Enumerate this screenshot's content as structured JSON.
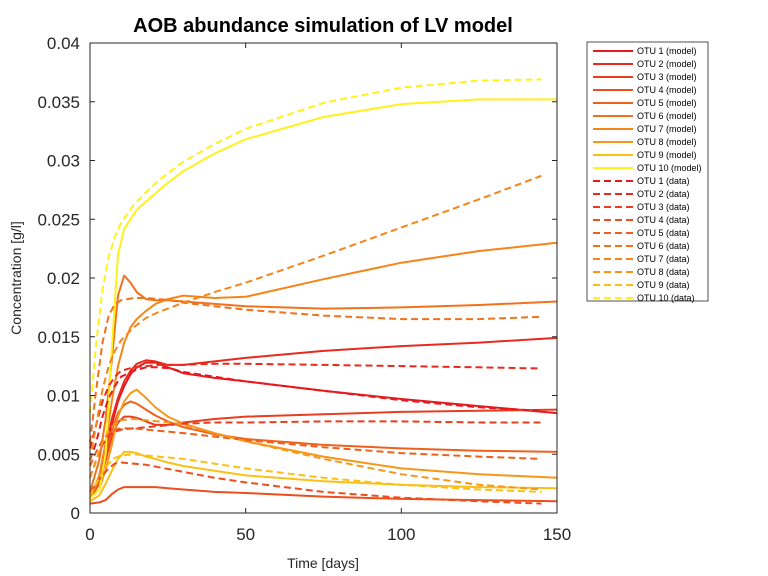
{
  "chart_data": {
    "type": "line",
    "title": "AOB abundance simulation of LV model",
    "xlabel": "Time [days]",
    "ylabel": "Concentration [g/l]",
    "xlim": [
      0,
      150
    ],
    "ylim": [
      0,
      0.04
    ],
    "xticks": [
      0,
      50,
      100,
      150
    ],
    "xtick_labels": [
      "0",
      "50",
      "100",
      "150"
    ],
    "yticks": [
      0,
      0.005,
      0.01,
      0.015,
      0.02,
      0.025,
      0.03,
      0.035,
      0.04
    ],
    "ytick_labels": [
      "0",
      "0.005",
      "0.01",
      "0.015",
      "0.02",
      "0.025",
      "0.03",
      "0.035",
      "0.04"
    ],
    "grid": false,
    "legend_position": "outside-top-right",
    "series": [
      {
        "name": "OTU 1 (model)",
        "color": "#e6191f",
        "dash": "solid",
        "x": [
          0,
          3,
          5,
          7,
          9,
          11,
          13,
          15,
          18,
          21,
          25,
          30,
          40,
          50,
          75,
          100,
          125,
          150
        ],
        "y": [
          0.0012,
          0.0025,
          0.005,
          0.0075,
          0.0095,
          0.0108,
          0.0118,
          0.0124,
          0.0128,
          0.0128,
          0.0124,
          0.0119,
          0.0115,
          0.0112,
          0.0104,
          0.0097,
          0.0091,
          0.0085
        ]
      },
      {
        "name": "OTU 2 (model)",
        "color": "#e82a1e",
        "dash": "solid",
        "x": [
          0,
          3,
          5,
          7,
          9,
          11,
          13,
          15,
          18,
          21,
          25,
          30,
          40,
          50,
          75,
          100,
          125,
          150
        ],
        "y": [
          0.0012,
          0.0028,
          0.0055,
          0.008,
          0.0098,
          0.0112,
          0.0121,
          0.0127,
          0.013,
          0.0129,
          0.0126,
          0.0126,
          0.0129,
          0.0132,
          0.0138,
          0.0142,
          0.0145,
          0.0149
        ]
      },
      {
        "name": "OTU 3 (model)",
        "color": "#ea3c1e",
        "dash": "solid",
        "x": [
          0,
          3,
          5,
          7,
          9,
          11,
          13,
          15,
          18,
          21,
          25,
          30,
          40,
          50,
          75,
          100,
          125,
          150
        ],
        "y": [
          0.0012,
          0.0025,
          0.0045,
          0.0065,
          0.0077,
          0.0082,
          0.0082,
          0.0081,
          0.0078,
          0.0075,
          0.0075,
          0.0077,
          0.008,
          0.0082,
          0.0084,
          0.0086,
          0.0087,
          0.0088
        ]
      },
      {
        "name": "OTU 4 (model)",
        "color": "#ed4e1d",
        "dash": "solid",
        "x": [
          0,
          3,
          5,
          7,
          9,
          11,
          13,
          15,
          18,
          21,
          25,
          30,
          40,
          50,
          75,
          100,
          125,
          150
        ],
        "y": [
          0.0008,
          0.0009,
          0.0011,
          0.0016,
          0.002,
          0.0022,
          0.0022,
          0.0022,
          0.0022,
          0.0022,
          0.0021,
          0.002,
          0.0018,
          0.0017,
          0.0014,
          0.0012,
          0.0011,
          0.001
        ]
      },
      {
        "name": "OTU 5 (model)",
        "color": "#ef601c",
        "dash": "solid",
        "x": [
          0,
          3,
          5,
          7,
          9,
          11,
          13,
          15,
          18,
          21,
          25,
          30,
          40,
          50,
          75,
          100,
          125,
          150
        ],
        "y": [
          0.0012,
          0.0026,
          0.005,
          0.007,
          0.0085,
          0.0092,
          0.0095,
          0.0093,
          0.0088,
          0.0083,
          0.0078,
          0.0073,
          0.0067,
          0.0063,
          0.0058,
          0.0055,
          0.0053,
          0.0052
        ]
      },
      {
        "name": "OTU 6 (model)",
        "color": "#f2721b",
        "dash": "solid",
        "x": [
          0,
          3,
          5,
          7,
          9,
          11,
          13,
          15,
          18,
          21,
          25,
          30,
          40,
          50,
          75,
          100,
          125,
          150
        ],
        "y": [
          0.0018,
          0.0045,
          0.008,
          0.013,
          0.0185,
          0.0202,
          0.0196,
          0.0188,
          0.0182,
          0.0181,
          0.0181,
          0.018,
          0.0178,
          0.0176,
          0.0174,
          0.0175,
          0.0177,
          0.018
        ]
      },
      {
        "name": "OTU 7 (model)",
        "color": "#f5851a",
        "dash": "solid",
        "x": [
          0,
          3,
          5,
          7,
          9,
          11,
          13,
          15,
          18,
          21,
          25,
          30,
          40,
          50,
          75,
          100,
          125,
          150
        ],
        "y": [
          0.0012,
          0.0032,
          0.006,
          0.0095,
          0.0125,
          0.0145,
          0.0158,
          0.0165,
          0.0172,
          0.0178,
          0.0182,
          0.0185,
          0.0183,
          0.0184,
          0.0199,
          0.0213,
          0.0223,
          0.023
        ]
      },
      {
        "name": "OTU 8 (model)",
        "color": "#f7971a",
        "dash": "solid",
        "x": [
          0,
          3,
          5,
          7,
          9,
          11,
          13,
          15,
          18,
          21,
          25,
          30,
          40,
          50,
          75,
          100,
          125,
          150
        ],
        "y": [
          0.0012,
          0.002,
          0.0037,
          0.0058,
          0.0082,
          0.0095,
          0.0102,
          0.0105,
          0.0098,
          0.009,
          0.0082,
          0.0076,
          0.0068,
          0.0061,
          0.0048,
          0.0038,
          0.0033,
          0.003
        ]
      },
      {
        "name": "OTU 9 (model)",
        "color": "#fac019",
        "dash": "solid",
        "x": [
          0,
          3,
          5,
          7,
          9,
          11,
          13,
          15,
          18,
          21,
          25,
          30,
          40,
          50,
          75,
          100,
          125,
          150
        ],
        "y": [
          0.001,
          0.0015,
          0.0025,
          0.0036,
          0.0046,
          0.0052,
          0.0052,
          0.0051,
          0.0048,
          0.0046,
          0.0043,
          0.004,
          0.0036,
          0.0032,
          0.0027,
          0.0024,
          0.0022,
          0.0021
        ]
      },
      {
        "name": "OTU 10 (model)",
        "color": "#fff21c",
        "dash": "solid",
        "x": [
          0,
          3,
          5,
          7,
          9,
          11,
          13,
          15,
          18,
          21,
          25,
          30,
          40,
          50,
          75,
          100,
          125,
          150
        ],
        "y": [
          0.0012,
          0.002,
          0.005,
          0.014,
          0.022,
          0.0242,
          0.025,
          0.0258,
          0.0265,
          0.0272,
          0.0281,
          0.0291,
          0.0306,
          0.0318,
          0.0337,
          0.0348,
          0.0352,
          0.0352
        ]
      },
      {
        "name": "OTU 1 (data)",
        "color": "#e6191f",
        "dash": "dashed",
        "x": [
          0,
          2,
          4,
          6,
          8,
          10,
          14,
          18,
          22,
          26,
          30,
          40,
          50,
          75,
          100,
          125,
          145
        ],
        "y": [
          0.0045,
          0.006,
          0.0082,
          0.0098,
          0.0108,
          0.0116,
          0.0121,
          0.0124,
          0.0124,
          0.0123,
          0.012,
          0.0116,
          0.0112,
          0.0104,
          0.0096,
          0.009,
          0.0087
        ]
      },
      {
        "name": "OTU 2 (data)",
        "color": "#e82a1e",
        "dash": "dashed",
        "x": [
          0,
          2,
          4,
          6,
          8,
          10,
          14,
          18,
          22,
          26,
          30,
          40,
          50,
          75,
          100,
          125,
          145
        ],
        "y": [
          0.0055,
          0.0075,
          0.0095,
          0.0108,
          0.0116,
          0.0121,
          0.0124,
          0.0125,
          0.0126,
          0.0126,
          0.0126,
          0.0127,
          0.0127,
          0.0126,
          0.0125,
          0.0124,
          0.0123
        ]
      },
      {
        "name": "OTU 3 (data)",
        "color": "#ea3c1e",
        "dash": "dashed",
        "x": [
          0,
          2,
          4,
          6,
          8,
          10,
          14,
          18,
          22,
          26,
          30,
          40,
          50,
          75,
          100,
          125,
          145
        ],
        "y": [
          0.003,
          0.0045,
          0.0058,
          0.0066,
          0.0069,
          0.0071,
          0.0072,
          0.0073,
          0.0074,
          0.0075,
          0.0076,
          0.0077,
          0.0077,
          0.0078,
          0.0078,
          0.0077,
          0.0077
        ]
      },
      {
        "name": "OTU 4 (data)",
        "color": "#ed4e1d",
        "dash": "dashed",
        "x": [
          0,
          2,
          4,
          6,
          8,
          10,
          14,
          18,
          22,
          26,
          30,
          40,
          50,
          75,
          100,
          125,
          145
        ],
        "y": [
          0.0018,
          0.0025,
          0.0032,
          0.0038,
          0.0042,
          0.0043,
          0.0042,
          0.0041,
          0.0039,
          0.0037,
          0.0035,
          0.003,
          0.0026,
          0.0018,
          0.0013,
          0.001,
          0.0008
        ]
      },
      {
        "name": "OTU 5 (data)",
        "color": "#ef601c",
        "dash": "dashed",
        "x": [
          0,
          2,
          4,
          6,
          8,
          10,
          14,
          18,
          22,
          26,
          30,
          40,
          50,
          75,
          100,
          125,
          145
        ],
        "y": [
          0.004,
          0.0052,
          0.0062,
          0.0068,
          0.0071,
          0.0072,
          0.0072,
          0.0071,
          0.007,
          0.0069,
          0.0068,
          0.0065,
          0.0062,
          0.0056,
          0.0051,
          0.0048,
          0.0046
        ]
      },
      {
        "name": "OTU 6 (data)",
        "color": "#f2721b",
        "dash": "dashed",
        "x": [
          0,
          2,
          4,
          6,
          8,
          10,
          14,
          18,
          22,
          26,
          30,
          40,
          50,
          75,
          100,
          125,
          145
        ],
        "y": [
          0.006,
          0.0105,
          0.0145,
          0.0168,
          0.0178,
          0.0181,
          0.0183,
          0.0183,
          0.0182,
          0.0181,
          0.0179,
          0.0176,
          0.0173,
          0.0168,
          0.0165,
          0.0165,
          0.0167
        ]
      },
      {
        "name": "OTU 7 (data)",
        "color": "#f5851a",
        "dash": "dashed",
        "x": [
          0,
          2,
          4,
          6,
          8,
          10,
          14,
          18,
          22,
          26,
          30,
          40,
          50,
          75,
          100,
          125,
          145
        ],
        "y": [
          0.0045,
          0.0075,
          0.0105,
          0.0125,
          0.0138,
          0.0147,
          0.0158,
          0.0166,
          0.0171,
          0.0175,
          0.0179,
          0.0188,
          0.0196,
          0.0219,
          0.0243,
          0.0267,
          0.0287
        ]
      },
      {
        "name": "OTU 8 (data)",
        "color": "#f7971a",
        "dash": "dashed",
        "x": [
          0,
          2,
          4,
          6,
          8,
          10,
          14,
          18,
          22,
          26,
          30,
          40,
          50,
          75,
          100,
          125,
          145
        ],
        "y": [
          0.003,
          0.0045,
          0.006,
          0.007,
          0.0076,
          0.0079,
          0.008,
          0.0079,
          0.0078,
          0.0077,
          0.0075,
          0.0068,
          0.0061,
          0.0046,
          0.0033,
          0.0024,
          0.002
        ]
      },
      {
        "name": "OTU 9 (data)",
        "color": "#fac019",
        "dash": "dashed",
        "x": [
          0,
          2,
          4,
          6,
          8,
          10,
          14,
          18,
          22,
          26,
          30,
          40,
          50,
          75,
          100,
          125,
          145
        ],
        "y": [
          0.0015,
          0.0025,
          0.0035,
          0.0042,
          0.0047,
          0.0049,
          0.005,
          0.0049,
          0.0048,
          0.0047,
          0.0046,
          0.0042,
          0.0038,
          0.003,
          0.0024,
          0.002,
          0.0018
        ]
      },
      {
        "name": "OTU 10 (data)",
        "color": "#fff21c",
        "dash": "dashed",
        "x": [
          0,
          2,
          4,
          6,
          8,
          10,
          14,
          18,
          22,
          26,
          30,
          40,
          50,
          75,
          100,
          125,
          145
        ],
        "y": [
          0.0085,
          0.0145,
          0.019,
          0.0218,
          0.0235,
          0.0247,
          0.0262,
          0.0273,
          0.0283,
          0.0291,
          0.0299,
          0.0314,
          0.0327,
          0.0349,
          0.0362,
          0.0368,
          0.0369
        ]
      }
    ]
  }
}
